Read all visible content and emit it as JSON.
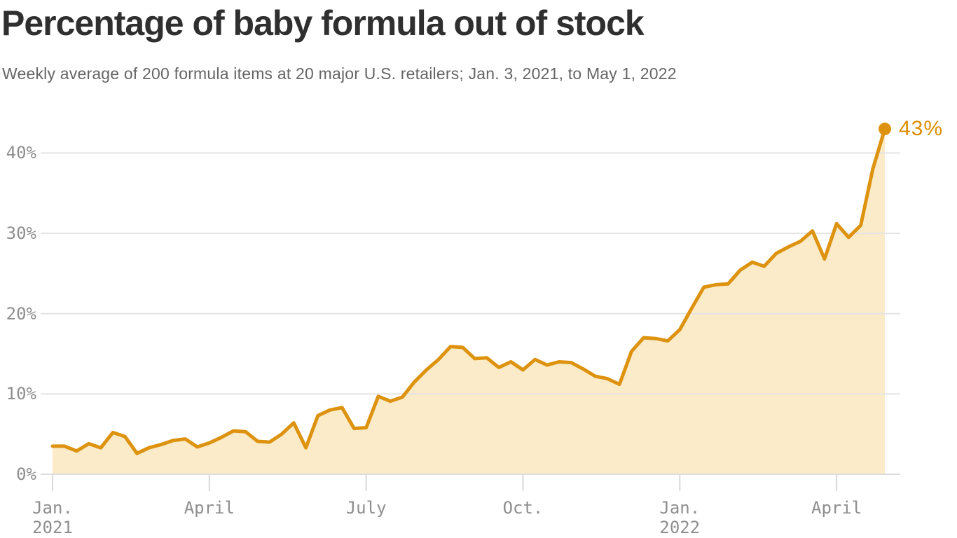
{
  "page": {
    "background": "#ffffff"
  },
  "header": {
    "title": "Percentage of baby formula out of stock",
    "subtitle": "Weekly average of 200 formula items at 20 major U.S. retailers; Jan. 3, 2021, to May 1, 2022"
  },
  "chart_data": {
    "type": "area",
    "title": "Percentage of baby formula out of stock",
    "subtitle": "Weekly average of 200 formula items at 20 major U.S. retailers; Jan. 3, 2021, to May 1, 2022",
    "xlabel": "",
    "ylabel": "",
    "unit": "%",
    "frequency": "weekly",
    "x_range": [
      "Jan. 3, 2021",
      "May 1, 2022"
    ],
    "num_points": 70,
    "values": [
      3.5,
      3.5,
      2.9,
      3.8,
      3.3,
      5.2,
      4.7,
      2.6,
      3.3,
      3.7,
      4.2,
      4.4,
      3.4,
      3.9,
      4.6,
      5.4,
      5.3,
      4.1,
      4.0,
      5.0,
      6.4,
      3.3,
      7.3,
      8.0,
      8.3,
      5.7,
      5.8,
      9.7,
      9.1,
      9.6,
      11.5,
      13.0,
      14.3,
      15.9,
      15.8,
      14.4,
      14.5,
      13.3,
      14.0,
      13.0,
      14.3,
      13.6,
      14.0,
      13.9,
      13.1,
      12.2,
      11.9,
      11.2,
      15.3,
      17.0,
      16.9,
      16.6,
      18.0,
      20.7,
      23.3,
      23.6,
      23.7,
      25.4,
      26.4,
      25.9,
      27.5,
      28.3,
      29.0,
      30.3,
      26.8,
      31.2,
      29.5,
      31.0,
      38.0,
      43.0
    ],
    "ylim": [
      0,
      45
    ],
    "grid": true,
    "legend": false,
    "y_ticks": [
      {
        "value": 0,
        "label": "0%"
      },
      {
        "value": 10,
        "label": "10%"
      },
      {
        "value": 20,
        "label": "20%"
      },
      {
        "value": 30,
        "label": "30%"
      },
      {
        "value": 40,
        "label": "40%"
      }
    ],
    "x_ticks": [
      {
        "week": 0,
        "label": "Jan.",
        "sublabel": "2021"
      },
      {
        "week": 13,
        "label": "April",
        "sublabel": ""
      },
      {
        "week": 26,
        "label": "July",
        "sublabel": ""
      },
      {
        "week": 39,
        "label": "Oct.",
        "sublabel": ""
      },
      {
        "week": 52,
        "label": "Jan.",
        "sublabel": "2022"
      },
      {
        "week": 65,
        "label": "April",
        "sublabel": ""
      }
    ],
    "end_annotation": {
      "label": "43%",
      "value": 43
    },
    "colors": {
      "line": "#dd9310",
      "fill": "#fbebc9",
      "dot": "#dd9310",
      "annotation": "#dd8e00",
      "grid": "#e4e4e4",
      "baseline": "#dcdcdc",
      "tick": "#d9d9d9",
      "axis_text": "#8e8e8e",
      "title": "#2f2f2f",
      "subtitle": "#656565"
    }
  }
}
